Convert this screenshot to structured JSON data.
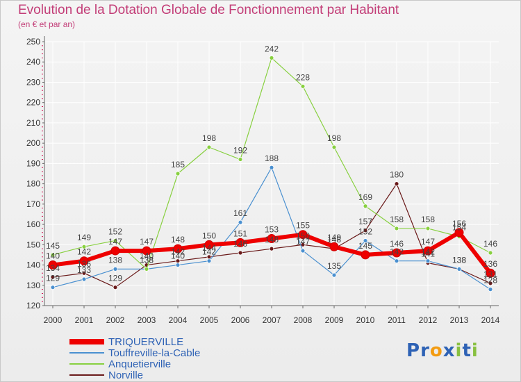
{
  "header": {
    "title": "Evolution de la Dotation Globale de Fonctionnement par Habitant",
    "subtitle": "(en € et par an)"
  },
  "brand": {
    "letters": [
      "P",
      "r",
      "o",
      "x",
      "i",
      "t",
      "i"
    ]
  },
  "colors": {
    "title": "#c33e78",
    "axis": "#666666",
    "grid": "#ffffff",
    "tick": "#d01050",
    "legend_text": "#2e62b5"
  },
  "chart_data": {
    "type": "line",
    "title": "Evolution de la Dotation Globale de Fonctionnement par Habitant",
    "subtitle": "(en € et par an)",
    "xlabel": "",
    "ylabel": "",
    "ylim": [
      120,
      250
    ],
    "y_ticks": [
      120,
      130,
      140,
      150,
      160,
      170,
      180,
      190,
      200,
      210,
      220,
      230,
      240,
      250
    ],
    "x": [
      "2000",
      "2001",
      "2002",
      "2003",
      "2004",
      "2005",
      "2006",
      "2007",
      "2008",
      "2009",
      "2010",
      "2011",
      "2012",
      "2013",
      "2014"
    ],
    "grid": true,
    "legend_position": "bottom-left",
    "series": [
      {
        "name": "TRIQUERVILLE",
        "color": "#ee0000",
        "values": [
          140,
          142,
          147,
          147,
          148,
          150,
          151,
          153,
          155,
          149,
          145,
          146,
          147,
          156,
          136
        ]
      },
      {
        "name": "Touffreville-la-Cable",
        "color": "#4a90d0",
        "values": [
          129,
          133,
          138,
          138,
          140,
          142,
          161,
          188,
          147,
          135,
          152,
          142,
          142,
          138,
          128
        ]
      },
      {
        "name": "Anquetierville",
        "color": "#88d040",
        "values": [
          145,
          149,
          152,
          138,
          185,
          198,
          192,
          242,
          228,
          198,
          169,
          158,
          158,
          154,
          146
        ]
      },
      {
        "name": "Norville",
        "color": "#6a1a1a",
        "values": [
          134,
          136,
          129,
          140,
          142,
          144,
          146,
          148,
          150,
          148,
          157,
          180,
          141,
          138,
          131
        ]
      }
    ]
  }
}
